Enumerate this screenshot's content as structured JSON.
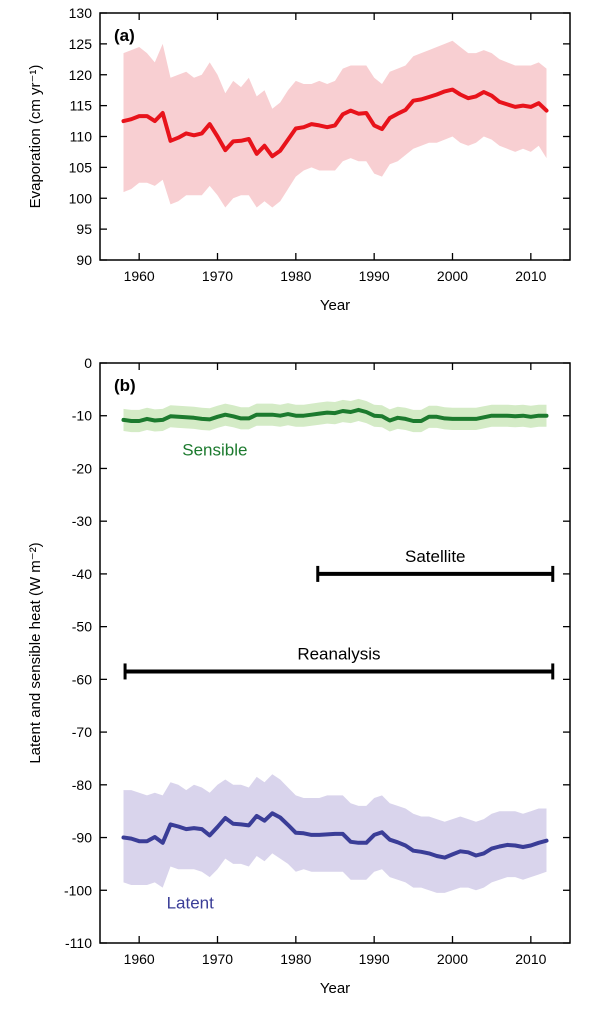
{
  "chart_data": [
    {
      "type": "line",
      "panel_label": "(a)",
      "xlabel": "Year",
      "ylabel": "Evaporation (cm yr⁻¹)",
      "xlim": [
        1955,
        2015
      ],
      "ylim": [
        90,
        130
      ],
      "xticks": [
        1960,
        1970,
        1980,
        1990,
        2000,
        2010
      ],
      "yticks": [
        90,
        95,
        100,
        105,
        110,
        115,
        120,
        125,
        130
      ],
      "grid": false,
      "colors": {
        "line": "#e8131b",
        "band": "#f8cfd2"
      },
      "x": [
        1958,
        1959,
        1960,
        1961,
        1962,
        1963,
        1964,
        1965,
        1966,
        1967,
        1968,
        1969,
        1970,
        1971,
        1972,
        1973,
        1974,
        1975,
        1976,
        1977,
        1978,
        1979,
        1980,
        1981,
        1982,
        1983,
        1984,
        1985,
        1986,
        1987,
        1988,
        1989,
        1990,
        1991,
        1992,
        1993,
        1994,
        1995,
        1996,
        1997,
        1998,
        1999,
        2000,
        2001,
        2002,
        2003,
        2004,
        2005,
        2006,
        2007,
        2008,
        2009,
        2010,
        2011,
        2012
      ],
      "series": [
        {
          "values": [
            112.5,
            112.8,
            113.3,
            113.3,
            112.5,
            113.8,
            109.3,
            109.8,
            110.5,
            110.2,
            110.5,
            112.0,
            110.0,
            107.8,
            109.2,
            109.3,
            109.6,
            107.2,
            108.5,
            106.8,
            107.7,
            109.5,
            111.3,
            111.5,
            112.0,
            111.8,
            111.5,
            111.8,
            113.6,
            114.2,
            113.7,
            113.8,
            111.8,
            111.2,
            113.0,
            113.7,
            114.3,
            115.8,
            116.0,
            116.4,
            116.8,
            117.3,
            117.6,
            116.8,
            116.2,
            116.5,
            117.2,
            116.6,
            115.6,
            115.2,
            114.8,
            115.0,
            114.8,
            115.4,
            114.2
          ],
          "upper": [
            123.5,
            124.0,
            124.5,
            123.5,
            122.0,
            125.0,
            119.5,
            120.0,
            120.5,
            119.5,
            120.0,
            122.0,
            120.0,
            117.0,
            119.0,
            118.0,
            119.5,
            116.5,
            117.5,
            114.5,
            115.5,
            117.5,
            119.0,
            118.5,
            118.5,
            119.0,
            118.5,
            119.0,
            121.0,
            121.5,
            121.5,
            121.5,
            119.5,
            118.5,
            120.5,
            121.0,
            121.5,
            123.0,
            123.5,
            124.0,
            124.5,
            125.0,
            125.5,
            124.5,
            123.5,
            123.5,
            124.0,
            123.5,
            122.5,
            122.0,
            121.5,
            121.5,
            121.5,
            122.0,
            121.0
          ],
          "lower": [
            101.0,
            101.5,
            102.5,
            102.5,
            102.0,
            103.0,
            99.0,
            99.5,
            100.5,
            100.5,
            100.5,
            102.0,
            100.5,
            98.5,
            100.0,
            100.5,
            100.5,
            98.5,
            99.5,
            98.5,
            99.5,
            101.5,
            103.5,
            104.5,
            105.0,
            104.5,
            104.5,
            104.5,
            106.0,
            106.5,
            106.0,
            106.0,
            104.0,
            103.5,
            105.5,
            106.0,
            107.0,
            108.0,
            108.5,
            109.0,
            109.0,
            109.5,
            110.0,
            109.0,
            108.5,
            109.0,
            110.0,
            109.5,
            108.5,
            108.0,
            107.5,
            108.0,
            107.5,
            108.5,
            106.5
          ]
        }
      ]
    },
    {
      "type": "line",
      "panel_label": "(b)",
      "xlabel": "Year",
      "ylabel": "Latent and sensible heat (W m⁻²)",
      "xlim": [
        1955,
        2015
      ],
      "ylim": [
        -110,
        0
      ],
      "xticks": [
        1960,
        1970,
        1980,
        1990,
        2000,
        2010
      ],
      "yticks": [
        -110,
        -100,
        -90,
        -80,
        -70,
        -60,
        -50,
        -40,
        -30,
        -20,
        -10,
        0
      ],
      "grid": false,
      "x": [
        1958,
        1959,
        1960,
        1961,
        1962,
        1963,
        1964,
        1965,
        1966,
        1967,
        1968,
        1969,
        1970,
        1971,
        1972,
        1973,
        1974,
        1975,
        1976,
        1977,
        1978,
        1979,
        1980,
        1981,
        1982,
        1983,
        1984,
        1985,
        1986,
        1987,
        1988,
        1989,
        1990,
        1991,
        1992,
        1993,
        1994,
        1995,
        1996,
        1997,
        1998,
        1999,
        2000,
        2001,
        2002,
        2003,
        2004,
        2005,
        2006,
        2007,
        2008,
        2009,
        2010,
        2011,
        2012
      ],
      "series": [
        {
          "name": "Sensible",
          "color": "#1c7a2e",
          "band_color": "#d4ebc6",
          "values": [
            -10.8,
            -11.0,
            -11.0,
            -10.6,
            -10.9,
            -10.8,
            -10.1,
            -10.2,
            -10.3,
            -10.4,
            -10.6,
            -10.7,
            -10.2,
            -9.8,
            -10.1,
            -10.5,
            -10.5,
            -9.8,
            -9.8,
            -9.8,
            -10.0,
            -9.7,
            -10.0,
            -10.0,
            -9.8,
            -9.6,
            -9.4,
            -9.5,
            -9.1,
            -9.3,
            -8.9,
            -9.3,
            -10.0,
            -10.1,
            -10.9,
            -10.4,
            -10.6,
            -11.0,
            -11.0,
            -10.2,
            -10.2,
            -10.5,
            -10.6,
            -10.6,
            -10.6,
            -10.6,
            -10.3,
            -10.0,
            -10.0,
            -10.0,
            -10.1,
            -10.0,
            -10.2,
            -10.0,
            -10.0
          ],
          "upper": [
            -8.7,
            -8.9,
            -8.9,
            -8.5,
            -8.8,
            -8.7,
            -8.0,
            -8.1,
            -8.2,
            -8.3,
            -8.5,
            -8.6,
            -8.1,
            -7.7,
            -8.0,
            -8.4,
            -8.4,
            -7.7,
            -7.7,
            -7.7,
            -7.9,
            -7.6,
            -7.9,
            -7.9,
            -7.7,
            -7.5,
            -7.3,
            -7.4,
            -7.0,
            -7.2,
            -6.8,
            -7.2,
            -7.9,
            -8.0,
            -8.8,
            -8.3,
            -8.5,
            -8.9,
            -8.9,
            -8.1,
            -8.1,
            -8.4,
            -8.5,
            -8.5,
            -8.5,
            -8.5,
            -8.2,
            -7.9,
            -7.9,
            -7.9,
            -8.0,
            -7.9,
            -8.1,
            -7.9,
            -7.9
          ],
          "lower": [
            -12.9,
            -13.1,
            -13.1,
            -12.7,
            -13.0,
            -12.9,
            -12.2,
            -12.3,
            -12.4,
            -12.5,
            -12.7,
            -12.8,
            -12.3,
            -11.9,
            -12.2,
            -12.6,
            -12.6,
            -11.9,
            -11.9,
            -11.9,
            -12.1,
            -11.8,
            -12.1,
            -12.1,
            -11.9,
            -11.7,
            -11.5,
            -11.6,
            -11.2,
            -11.4,
            -11.0,
            -11.4,
            -12.1,
            -12.2,
            -13.0,
            -12.5,
            -12.7,
            -13.1,
            -13.1,
            -12.3,
            -12.3,
            -12.6,
            -12.7,
            -12.7,
            -12.7,
            -12.7,
            -12.4,
            -12.1,
            -12.1,
            -12.1,
            -12.2,
            -12.1,
            -12.3,
            -12.1,
            -12.1
          ]
        },
        {
          "name": "Latent",
          "color": "#3a3d97",
          "band_color": "#d9d4ec",
          "values": [
            -90.0,
            -90.2,
            -90.7,
            -90.7,
            -89.9,
            -91.0,
            -87.5,
            -87.9,
            -88.4,
            -88.2,
            -88.4,
            -89.6,
            -88.0,
            -86.3,
            -87.4,
            -87.5,
            -87.7,
            -85.9,
            -86.8,
            -85.4,
            -86.2,
            -87.6,
            -89.1,
            -89.2,
            -89.5,
            -89.5,
            -89.4,
            -89.3,
            -89.3,
            -90.8,
            -91.0,
            -91.0,
            -89.5,
            -89.0,
            -90.4,
            -90.9,
            -91.5,
            -92.5,
            -92.7,
            -93.0,
            -93.5,
            -93.8,
            -93.2,
            -92.6,
            -92.8,
            -93.4,
            -93.0,
            -92.1,
            -91.7,
            -91.4,
            -91.5,
            -91.8,
            -91.5,
            -91.0,
            -90.6
          ],
          "upper": [
            -81.0,
            -81.0,
            -81.5,
            -82.0,
            -81.5,
            -82.0,
            -79.5,
            -80.0,
            -81.0,
            -80.0,
            -80.5,
            -81.5,
            -80.0,
            -79.0,
            -80.0,
            -80.0,
            -80.5,
            -78.5,
            -79.5,
            -78.0,
            -79.0,
            -80.5,
            -82.0,
            -82.5,
            -82.5,
            -82.5,
            -82.0,
            -82.0,
            -82.0,
            -83.5,
            -84.0,
            -84.0,
            -82.5,
            -82.0,
            -83.5,
            -84.0,
            -84.5,
            -85.5,
            -86.0,
            -86.0,
            -86.5,
            -87.0,
            -86.5,
            -86.0,
            -86.5,
            -87.0,
            -86.5,
            -85.5,
            -85.0,
            -85.0,
            -85.0,
            -85.5,
            -85.0,
            -84.5,
            -84.5
          ],
          "lower": [
            -98.5,
            -99.0,
            -99.0,
            -99.0,
            -98.5,
            -99.5,
            -95.5,
            -96.0,
            -96.0,
            -96.0,
            -96.5,
            -97.5,
            -96.0,
            -94.0,
            -95.0,
            -95.0,
            -95.5,
            -93.5,
            -94.5,
            -93.0,
            -94.0,
            -95.0,
            -96.5,
            -96.0,
            -96.5,
            -96.5,
            -96.5,
            -96.5,
            -96.5,
            -98.0,
            -98.0,
            -98.0,
            -96.5,
            -96.0,
            -97.5,
            -98.0,
            -98.5,
            -99.5,
            -99.5,
            -100.0,
            -100.5,
            -100.5,
            -100.0,
            -99.5,
            -99.5,
            -100.0,
            -99.5,
            -98.5,
            -98.0,
            -97.5,
            -97.5,
            -98.0,
            -97.5,
            -97.0,
            -96.5
          ]
        }
      ],
      "intervals": [
        {
          "label": "Satellite",
          "start": 1982.8,
          "end": 2012.8,
          "y": -40
        },
        {
          "label": "Reanalysis",
          "start": 1958.2,
          "end": 2012.8,
          "y": -58.5
        }
      ]
    }
  ]
}
